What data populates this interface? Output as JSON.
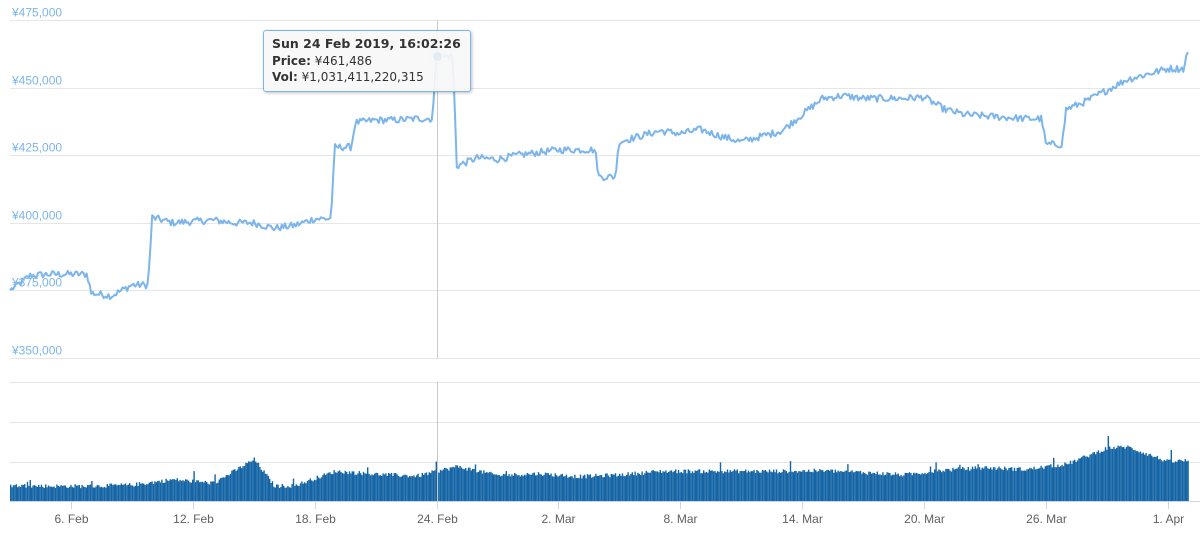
{
  "chart_data": [
    {
      "type": "line",
      "series": [
        {
          "x": [
            "2019-02-03",
            "2019-02-04",
            "2019-02-05",
            "2019-02-06",
            "2019-02-07",
            "2019-02-08",
            "2019-02-09",
            "2019-02-10",
            "2019-02-11",
            "2019-02-12",
            "2019-02-13",
            "2019-02-14",
            "2019-02-15",
            "2019-02-16",
            "2019-02-17",
            "2019-02-18",
            "2019-02-19",
            "2019-02-20",
            "2019-02-21",
            "2019-02-22",
            "2019-02-23",
            "2019-02-24",
            "2019-02-25",
            "2019-02-26",
            "2019-02-27",
            "2019-02-28",
            "2019-03-01",
            "2019-03-02",
            "2019-03-03",
            "2019-03-04",
            "2019-03-05",
            "2019-03-06",
            "2019-03-07",
            "2019-03-08",
            "2019-03-09",
            "2019-03-10",
            "2019-03-11",
            "2019-03-12",
            "2019-03-13",
            "2019-03-14",
            "2019-03-15",
            "2019-03-16",
            "2019-03-17",
            "2019-03-18",
            "2019-03-19",
            "2019-03-20",
            "2019-03-21",
            "2019-03-22",
            "2019-03-23",
            "2019-03-24",
            "2019-03-25",
            "2019-03-26",
            "2019-03-27",
            "2019-03-28",
            "2019-03-29",
            "2019-03-30",
            "2019-03-31",
            "2019-04-01",
            "2019-04-02"
          ],
          "y": [
            375000,
            380500,
            381000,
            381000,
            374000,
            373000,
            377000,
            402000,
            400000,
            400500,
            401000,
            400000,
            400000,
            398000,
            399000,
            401500,
            428000,
            437000,
            438000,
            438000,
            438500,
            461486,
            421000,
            424000,
            423500,
            425000,
            426000,
            427000,
            427000,
            417000,
            430000,
            432000,
            434000,
            433000,
            434500,
            432000,
            430000,
            432000,
            434000,
            440000,
            446000,
            447000,
            446000,
            446000,
            446000,
            446500,
            442000,
            440000,
            439500,
            439000,
            438500,
            429000,
            442000,
            445000,
            449000,
            453000,
            455000,
            457000,
            464000
          ]
        }
      ],
      "ylim": [
        350000,
        475000
      ],
      "ytick_labels": [
        "¥350,000",
        "¥375,000",
        "¥400,000",
        "¥425,000",
        "¥450,000",
        "¥475,000"
      ],
      "xtick_labels": [
        "6. Feb",
        "12. Feb",
        "18. Feb",
        "24. Feb",
        "2. Mar",
        "8. Mar",
        "14. Mar",
        "20. Mar",
        "26. Mar",
        "1. Apr"
      ],
      "xtick_dates": [
        "2019-02-06",
        "2019-02-12",
        "2019-02-18",
        "2019-02-24",
        "2019-03-02",
        "2019-03-08",
        "2019-03-14",
        "2019-03-20",
        "2019-03-26",
        "2019-04-01"
      ],
      "xlim": [
        "2019-02-03",
        "2019-04-02"
      ],
      "grid": true,
      "tooltip": {
        "date": "Sun 24 Feb 2019, 16:02:26",
        "price_label": "Price:",
        "price_value": "¥461,486",
        "vol_label": "Vol:",
        "vol_value": "¥1,031,411,220,315"
      },
      "highlight": {
        "x": "2019-02-24",
        "y": 461486
      },
      "colors": {
        "line": "#7cb5ec",
        "highlight": "#1565a6"
      }
    },
    {
      "type": "bar",
      "series": [
        {
          "x": [
            "2019-02-03",
            "2019-02-05",
            "2019-02-07",
            "2019-02-09",
            "2019-02-11",
            "2019-02-13",
            "2019-02-15",
            "2019-02-16",
            "2019-02-17",
            "2019-02-19",
            "2019-02-21",
            "2019-02-23",
            "2019-02-25",
            "2019-02-27",
            "2019-03-01",
            "2019-03-03",
            "2019-03-05",
            "2019-03-07",
            "2019-03-09",
            "2019-03-11",
            "2019-03-13",
            "2019-03-15",
            "2019-03-17",
            "2019-03-19",
            "2019-03-21",
            "2019-03-23",
            "2019-03-25",
            "2019-03-27",
            "2019-03-29",
            "2019-03-30",
            "2019-04-01",
            "2019-04-02"
          ],
          "y": [
            0.26,
            0.25,
            0.25,
            0.27,
            0.36,
            0.3,
            0.7,
            0.25,
            0.26,
            0.5,
            0.45,
            0.42,
            0.58,
            0.43,
            0.46,
            0.41,
            0.44,
            0.5,
            0.5,
            0.5,
            0.5,
            0.51,
            0.48,
            0.44,
            0.52,
            0.56,
            0.53,
            0.62,
            0.89,
            0.91,
            0.66,
            0.68
          ]
        }
      ],
      "colors": {
        "bar": "#1565a6"
      }
    }
  ]
}
